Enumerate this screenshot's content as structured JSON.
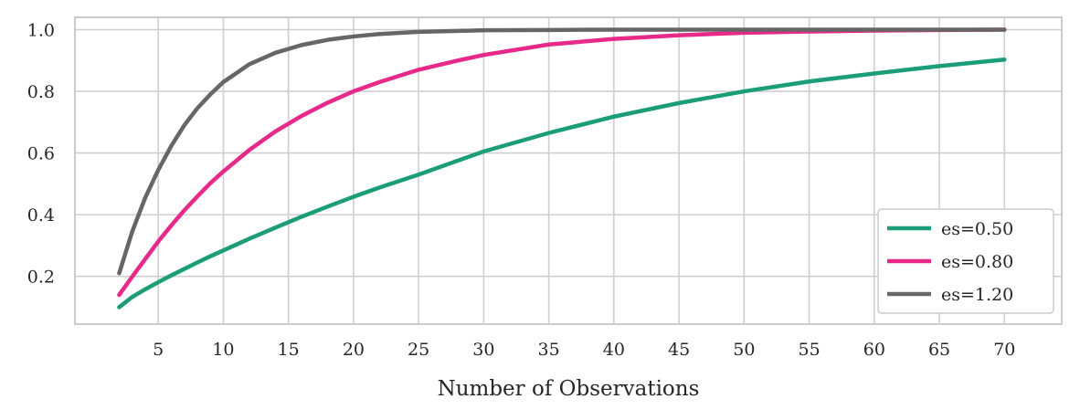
{
  "chart_data": {
    "type": "line",
    "title": "",
    "xlabel": "Number of Observations",
    "ylabel": "",
    "xlim": [
      -1.4,
      74.4
    ],
    "ylim": [
      0.045,
      1.04
    ],
    "xticks": [
      5,
      10,
      15,
      20,
      25,
      30,
      35,
      40,
      45,
      50,
      55,
      60,
      65,
      70
    ],
    "yticks": [
      0.2,
      0.4,
      0.6,
      0.8,
      1.0
    ],
    "ytick_labels": [
      "0.2",
      "0.4",
      "0.6",
      "0.8",
      "1.0"
    ],
    "grid": true,
    "legend_position": "bottom-right",
    "x": [
      2,
      3,
      4,
      5,
      6,
      7,
      8,
      9,
      10,
      12,
      14,
      16,
      18,
      20,
      22,
      25,
      28,
      30,
      35,
      40,
      45,
      50,
      55,
      60,
      65,
      70
    ],
    "series": [
      {
        "name": "es=0.50",
        "color": "#1b9e77",
        "values": [
          0.1,
          0.133,
          0.158,
          0.181,
          0.203,
          0.224,
          0.245,
          0.265,
          0.284,
          0.322,
          0.358,
          0.393,
          0.426,
          0.458,
          0.488,
          0.53,
          0.575,
          0.605,
          0.665,
          0.718,
          0.762,
          0.8,
          0.832,
          0.858,
          0.882,
          0.903
        ]
      },
      {
        "name": "es=0.80",
        "color": "#e7298a",
        "values": [
          0.14,
          0.199,
          0.256,
          0.313,
          0.365,
          0.414,
          0.459,
          0.502,
          0.54,
          0.61,
          0.67,
          0.72,
          0.763,
          0.8,
          0.83,
          0.87,
          0.9,
          0.918,
          0.952,
          0.97,
          0.982,
          0.99,
          0.994,
          0.997,
          0.999,
          1.0
        ]
      },
      {
        "name": "es=1.20",
        "color": "#666666",
        "values": [
          0.21,
          0.345,
          0.455,
          0.545,
          0.623,
          0.69,
          0.745,
          0.79,
          0.83,
          0.888,
          0.925,
          0.95,
          0.967,
          0.978,
          0.986,
          0.993,
          0.996,
          0.998,
          0.999,
          1.0,
          1.0,
          1.0,
          1.0,
          1.0,
          1.0,
          1.0
        ]
      }
    ]
  }
}
